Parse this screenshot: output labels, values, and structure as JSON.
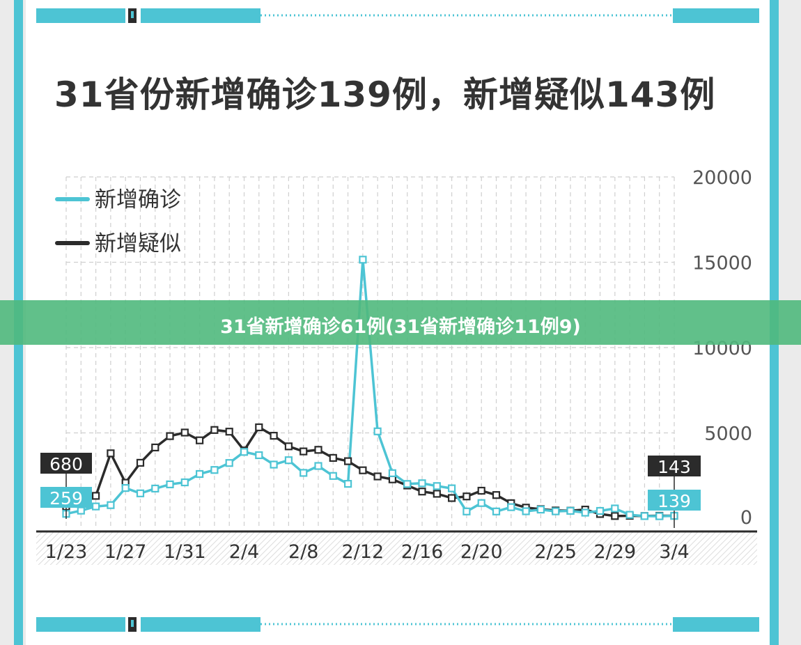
{
  "title": "31省份新增确诊139例，新增疑似143例",
  "banner": {
    "text": "31省新增确诊61例(31省新增确诊11例9)"
  },
  "colors": {
    "confirmed": "#4dc4d4",
    "suspected": "#2b2b2b",
    "frame": "#4dc4d4",
    "banner": "#50b97d"
  },
  "chart_data": {
    "type": "line",
    "title": "31省份新增确诊139例，新增疑似143例",
    "xlabel": "",
    "ylabel": "",
    "ylim": [
      0,
      20000
    ],
    "y_ticks": [
      "20000",
      "15000",
      "10000",
      "5000",
      "0"
    ],
    "x_tick_labels": [
      "1/23",
      "1/27",
      "1/31",
      "2/4",
      "2/8",
      "2/12",
      "2/16",
      "2/20",
      "2/25",
      "2/29",
      "3/4"
    ],
    "legend": {
      "position": "top-left",
      "items": [
        "新增确诊",
        "新增疑似"
      ]
    },
    "grid": true,
    "x": [
      "1/23",
      "1/24",
      "1/25",
      "1/26",
      "1/27",
      "1/28",
      "1/29",
      "1/30",
      "1/31",
      "2/1",
      "2/2",
      "2/3",
      "2/4",
      "2/5",
      "2/6",
      "2/7",
      "2/8",
      "2/9",
      "2/10",
      "2/11",
      "2/12",
      "2/13",
      "2/14",
      "2/15",
      "2/16",
      "2/17",
      "2/18",
      "2/19",
      "2/20",
      "2/21",
      "2/22",
      "2/23",
      "2/24",
      "2/25",
      "2/26",
      "2/27",
      "2/28",
      "2/29",
      "3/1",
      "3/2",
      "3/3",
      "3/4"
    ],
    "series": [
      {
        "name": "新增确诊",
        "values": [
          259,
          444,
          688,
          769,
          1771,
          1459,
          1737,
          1982,
          2102,
          2590,
          2829,
          3235,
          3887,
          3694,
          3143,
          3399,
          2656,
          3062,
          2478,
          2015,
          15152,
          5090,
          2641,
          2009,
          2048,
          1886,
          1749,
          394,
          889,
          397,
          648,
          409,
          508,
          406,
          433,
          327,
          427,
          573,
          202,
          125,
          119,
          139
        ],
        "end_label": "139"
      },
      {
        "name": "新增疑似",
        "values": [
          680,
          1118,
          1309,
          3806,
          2077,
          3248,
          4148,
          4812,
          5019,
          4562,
          5173,
          5072,
          3971,
          5328,
          4833,
          4214,
          3916,
          4008,
          3536,
          3342,
          2807,
          2450,
          2277,
          1918,
          1563,
          1432,
          1185,
          1277,
          1614,
          1361,
          882,
          620,
          530,
          452,
          439,
          508,
          248,
          132,
          141,
          129,
          143,
          143
        ],
        "end_label": "143"
      }
    ],
    "start_labels": {
      "confirmed": "259",
      "suspected": "680"
    }
  }
}
